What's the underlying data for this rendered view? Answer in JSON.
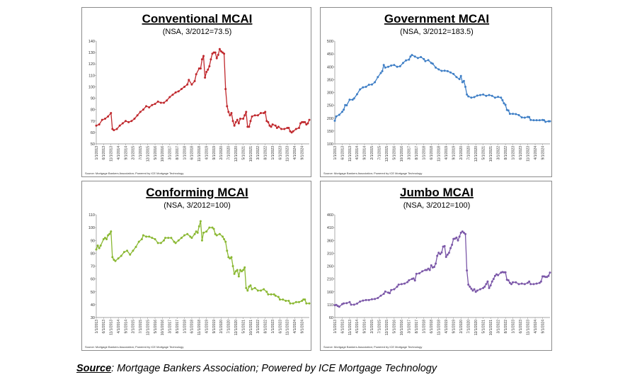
{
  "x_unit": "months since 1/1/2013",
  "x_tick_labels": [
    "1/1/2013",
    "6/1/2013",
    "11/1/2013",
    "4/1/2014",
    "9/1/2014",
    "2/1/2015",
    "7/1/2015",
    "12/1/2015",
    "5/1/2016",
    "10/1/2016",
    "3/1/2017",
    "8/1/2017",
    "1/1/2018",
    "6/1/2018",
    "11/1/2018",
    "4/1/2019",
    "9/1/2019",
    "2/1/2020",
    "7/1/2020",
    "12/1/2020",
    "5/1/2021",
    "10/1/2021",
    "3/1/2022",
    "8/1/2022",
    "1/1/2023",
    "6/1/2023",
    "11/1/2023",
    "4/1/2024",
    "9/1/2024"
  ],
  "chart_note": "Source: Mortgage Bankers Association; Powered by ICE Mortgage Technology",
  "footer": {
    "source_label": "Source",
    "source_text": ": Mortgage Bankers Association; Powered by ICE Mortgage Technology"
  },
  "chart_data": [
    {
      "type": "line",
      "title": "Conventional MCAI",
      "subtitle": "(NSA, 3/2012=73.5)",
      "color": "#c0282d",
      "ylim": [
        50,
        140
      ],
      "yticks": [
        50,
        60,
        70,
        80,
        90,
        100,
        110,
        120,
        130,
        140
      ],
      "x": [
        0,
        2,
        4,
        6,
        8,
        10,
        11,
        12,
        14,
        16,
        18,
        20,
        22,
        24,
        26,
        28,
        30,
        32,
        34,
        36,
        38,
        40,
        42,
        44,
        46,
        48,
        50,
        52,
        54,
        56,
        58,
        60,
        62,
        63,
        65,
        67,
        68,
        70,
        71,
        72,
        73,
        74,
        75,
        76,
        77,
        78,
        79,
        80,
        81,
        82,
        83,
        84,
        85,
        86,
        87,
        88,
        89,
        90,
        91,
        92,
        93,
        94,
        95,
        96,
        97,
        98,
        100,
        101,
        102,
        103,
        104,
        105,
        106,
        108,
        110,
        112,
        114,
        115,
        116,
        117,
        118,
        119,
        120,
        122,
        123,
        124,
        126,
        128,
        130,
        131,
        132,
        133,
        134,
        136,
        138,
        139,
        140,
        141,
        142,
        143,
        144,
        145
      ],
      "y": [
        66,
        67,
        71,
        72,
        74,
        77,
        63,
        62,
        63,
        66,
        68,
        70,
        69,
        70,
        72,
        75,
        78,
        80,
        83,
        82,
        84,
        85,
        87,
        86,
        86,
        88,
        91,
        93,
        95,
        96,
        98,
        100,
        102,
        106,
        102,
        105,
        111,
        116,
        116,
        124,
        127,
        108,
        113,
        115,
        118,
        124,
        129,
        130,
        130,
        125,
        128,
        133,
        131,
        130,
        129,
        98,
        83,
        78,
        75,
        77,
        70,
        66,
        69,
        71,
        68,
        72,
        72,
        75,
        78,
        65,
        65,
        70,
        74,
        75,
        75,
        77,
        77,
        78,
        70,
        69,
        66,
        65,
        67,
        66,
        64,
        65,
        63,
        63,
        64,
        64,
        61,
        60,
        61,
        63,
        64,
        68,
        69,
        69,
        69,
        67,
        68,
        71
      ]
    },
    {
      "type": "line",
      "title": "Government MCAI",
      "subtitle": "(NSA, 3/2012=183.5)",
      "color": "#3f7fc6",
      "ylim": [
        100,
        500
      ],
      "yticks": [
        100,
        150,
        200,
        250,
        300,
        350,
        400,
        450,
        500
      ],
      "x": [
        0,
        1,
        3,
        5,
        6,
        7,
        8,
        10,
        12,
        13,
        15,
        17,
        19,
        21,
        23,
        25,
        27,
        29,
        31,
        32,
        33,
        34,
        36,
        38,
        40,
        42,
        44,
        46,
        48,
        50,
        51,
        52,
        54,
        56,
        58,
        60,
        61,
        63,
        65,
        66,
        68,
        70,
        72,
        74,
        76,
        78,
        80,
        82,
        84,
        85,
        86,
        87,
        88,
        89,
        90,
        92,
        94,
        96,
        98,
        100,
        102,
        104,
        106,
        108,
        110,
        112,
        113,
        114,
        115,
        116,
        117,
        118,
        120,
        122,
        124,
        126,
        128,
        130,
        131,
        132,
        134,
        136,
        138,
        140,
        141,
        142,
        144,
        145
      ],
      "y": [
        190,
        207,
        213,
        225,
        233,
        251,
        250,
        272,
        272,
        277,
        293,
        312,
        320,
        322,
        330,
        331,
        340,
        360,
        376,
        383,
        407,
        397,
        400,
        405,
        407,
        400,
        402,
        415,
        425,
        428,
        440,
        446,
        440,
        434,
        438,
        430,
        422,
        426,
        415,
        412,
        397,
        390,
        384,
        385,
        383,
        378,
        372,
        360,
        352,
        364,
        340,
        345,
        322,
        292,
        285,
        280,
        282,
        288,
        290,
        292,
        287,
        290,
        287,
        280,
        283,
        280,
        270,
        258,
        252,
        232,
        230,
        217,
        217,
        216,
        212,
        203,
        202,
        205,
        204,
        193,
        192,
        192,
        192,
        193,
        192,
        186,
        188,
        188
      ]
    },
    {
      "type": "line",
      "title": "Conforming MCAI",
      "subtitle": "(NSA, 3/2012=100)",
      "color": "#8ab832",
      "ylim": [
        30,
        110
      ],
      "yticks": [
        30,
        40,
        50,
        60,
        70,
        80,
        90,
        100,
        110
      ],
      "x": [
        0,
        1,
        2,
        3,
        5,
        6,
        7,
        8,
        9,
        10,
        11,
        12,
        13,
        15,
        17,
        19,
        21,
        23,
        25,
        27,
        29,
        31,
        32,
        34,
        36,
        38,
        40,
        42,
        44,
        46,
        47,
        49,
        51,
        53,
        54,
        56,
        58,
        60,
        62,
        64,
        65,
        67,
        68,
        69,
        70,
        71,
        72,
        73,
        75,
        77,
        79,
        80,
        81,
        82,
        84,
        86,
        87,
        88,
        89,
        90,
        91,
        92,
        93,
        94,
        95,
        96,
        97,
        98,
        99,
        100,
        101,
        102,
        103,
        104,
        105,
        106,
        108,
        110,
        112,
        114,
        116,
        117,
        119,
        121,
        122,
        124,
        125,
        127,
        129,
        131,
        132,
        134,
        136,
        138,
        140,
        141,
        142,
        143,
        145
      ],
      "y": [
        83,
        86,
        84,
        86,
        91,
        92,
        91,
        94,
        95,
        97,
        77,
        75,
        74,
        76,
        78,
        81,
        82,
        79,
        82,
        85,
        89,
        91,
        94,
        93,
        93,
        92,
        91,
        88,
        88,
        90,
        92,
        92,
        92,
        89,
        88,
        90,
        92,
        94,
        95,
        93,
        92,
        95,
        97,
        96,
        101,
        105,
        90,
        96,
        97,
        100,
        100,
        99,
        95,
        94,
        95,
        93,
        91,
        89,
        82,
        77,
        76,
        77,
        70,
        64,
        66,
        67,
        62,
        67,
        66,
        67,
        69,
        53,
        51,
        54,
        55,
        52,
        53,
        51,
        51,
        52,
        50,
        48,
        48,
        48,
        47,
        46,
        44,
        44,
        43,
        43,
        41,
        41,
        42,
        42,
        43,
        44,
        44,
        41,
        41
      ]
    },
    {
      "type": "line",
      "title": "Jumbo MCAI",
      "subtitle": "(NSA, 3/2012=100)",
      "color": "#7b57a8",
      "ylim": [
        60,
        460
      ],
      "yticks": [
        60,
        110,
        160,
        210,
        260,
        310,
        360,
        410,
        460
      ],
      "x": [
        0,
        1,
        2,
        3,
        5,
        6,
        8,
        10,
        11,
        13,
        15,
        17,
        19,
        21,
        23,
        25,
        27,
        29,
        31,
        33,
        34,
        36,
        37,
        38,
        40,
        42,
        43,
        45,
        47,
        49,
        50,
        52,
        53,
        54,
        55,
        57,
        59,
        61,
        62,
        63,
        64,
        65,
        66,
        67,
        68,
        69,
        70,
        71,
        72,
        73,
        74,
        75,
        76,
        77,
        78,
        79,
        80,
        81,
        82,
        83,
        84,
        85,
        86,
        87,
        88,
        89,
        90,
        91,
        92,
        93,
        94,
        95,
        96,
        98,
        100,
        101,
        102,
        103,
        104,
        105,
        106,
        107,
        108,
        109,
        110,
        112,
        113,
        114,
        115,
        116,
        117,
        118,
        119,
        120,
        122,
        124,
        126,
        128,
        130,
        131,
        132,
        134,
        136,
        138,
        139,
        140,
        141,
        142,
        143,
        144,
        145
      ],
      "y": [
        108,
        109,
        105,
        102,
        112,
        115,
        116,
        120,
        110,
        110,
        114,
        122,
        126,
        128,
        128,
        131,
        132,
        136,
        145,
        152,
        161,
        157,
        155,
        167,
        170,
        180,
        188,
        190,
        192,
        198,
        205,
        210,
        212,
        204,
        230,
        232,
        240,
        245,
        245,
        250,
        245,
        263,
        255,
        257,
        270,
        300,
        312,
        307,
        313,
        336,
        338,
        296,
        305,
        312,
        330,
        343,
        366,
        367,
        371,
        360,
        375,
        390,
        395,
        390,
        385,
        243,
        188,
        180,
        172,
        165,
        170,
        160,
        165,
        170,
        175,
        180,
        190,
        200,
        175,
        185,
        200,
        210,
        222,
        228,
        225,
        235,
        237,
        236,
        236,
        207,
        205,
        195,
        190,
        197,
        197,
        190,
        192,
        190,
        195,
        200,
        190,
        190,
        192,
        195,
        200,
        220,
        220,
        218,
        218,
        222,
        235
      ]
    }
  ]
}
